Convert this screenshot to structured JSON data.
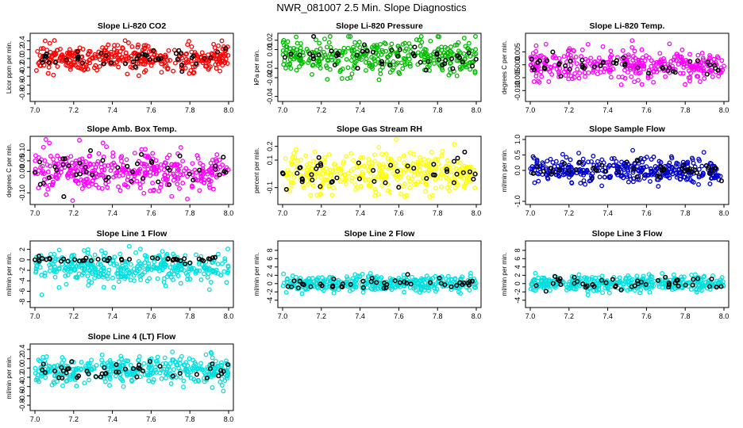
{
  "figure_title": "NWR_081007  2.5 Min. Slope Diagnostics",
  "chart_data": [
    {
      "type": "scatter",
      "title": "Slope Li-820 CO2",
      "ylabel": "Licor ppm per min.",
      "xlim": [
        7.0,
        8.0
      ],
      "ylim": [
        -0.9,
        0.5
      ],
      "xticks": [
        "7.0",
        "7.2",
        "7.4",
        "7.6",
        "7.8",
        "8.0"
      ],
      "yticks": [
        "-0.8",
        "-0.6",
        "-0.4",
        "-0.2",
        "0.0",
        "0.2",
        "0.4"
      ],
      "series": [
        {
          "color": "#ff0000",
          "center": 0.0,
          "spread": 0.15,
          "count": 360
        },
        {
          "color": "#000000",
          "center": 0.0,
          "spread": 0.1,
          "count": 45
        }
      ]
    },
    {
      "type": "scatter",
      "title": "Slope Li-820 Pressure",
      "ylabel": "kPa per min.",
      "xlim": [
        7.0,
        8.0
      ],
      "ylim": [
        -0.042,
        0.024
      ],
      "xticks": [
        "7.0",
        "7.2",
        "7.4",
        "7.6",
        "7.8",
        "8.0"
      ],
      "yticks": [
        "-0.04",
        "-0.02",
        "-0.01",
        "0.01",
        "0.02"
      ],
      "series": [
        {
          "color": "#00bb00",
          "center": 0.002,
          "spread": 0.009,
          "count": 360
        },
        {
          "color": "#000000",
          "center": 0.002,
          "spread": 0.007,
          "count": 45
        }
      ]
    },
    {
      "type": "scatter",
      "title": "Slope Li-820 Temp.",
      "ylabel": "degrees C per min.",
      "xlim": [
        7.0,
        8.0
      ],
      "ylim": [
        -0.013,
        0.011
      ],
      "xticks": [
        "7.0",
        "7.2",
        "7.4",
        "7.6",
        "7.8",
        "8.0"
      ],
      "yticks": [
        "-0.010",
        "-0.005",
        "0.000",
        "0.005"
      ],
      "series": [
        {
          "color": "#ff00ff",
          "center": 0.0,
          "spread": 0.003,
          "count": 340
        },
        {
          "color": "#000000",
          "center": 0.0,
          "spread": 0.002,
          "count": 45
        }
      ]
    },
    {
      "type": "scatter",
      "title": "Slope Amb. Box Temp.",
      "ylabel": "degrees C per min.",
      "xlim": [
        7.0,
        8.0
      ],
      "ylim": [
        -0.14,
        0.15
      ],
      "xticks": [
        "7.0",
        "7.2",
        "7.4",
        "7.6",
        "7.8",
        "8.0"
      ],
      "yticks": [
        "-0.10",
        "0.00",
        "0.05",
        "0.10"
      ],
      "series": [
        {
          "color": "#ff00ff",
          "center": 0.0,
          "spread": 0.05,
          "count": 360
        },
        {
          "color": "#000000",
          "center": 0.0,
          "spread": 0.04,
          "count": 45
        }
      ]
    },
    {
      "type": "scatter",
      "title": "Slope Gas Stream RH",
      "ylabel": "percent per min.",
      "xlim": [
        7.0,
        8.0
      ],
      "ylim": [
        -0.2,
        0.25
      ],
      "xticks": [
        "7.0",
        "7.2",
        "7.4",
        "7.6",
        "7.8",
        "8.0"
      ],
      "yticks": [
        "-0.1",
        "0.1",
        "0.2"
      ],
      "series": [
        {
          "color": "#ffff00",
          "center": 0.0,
          "spread": 0.07,
          "count": 360
        },
        {
          "color": "#000000",
          "center": 0.0,
          "spread": 0.06,
          "count": 45
        }
      ]
    },
    {
      "type": "scatter",
      "title": "Slope Sample Flow",
      "ylabel": "ml/min per min.",
      "xlim": [
        7.0,
        8.0
      ],
      "ylim": [
        -1.0,
        1.0
      ],
      "xticks": [
        "7.0",
        "7.2",
        "7.4",
        "7.6",
        "7.8",
        "8.0"
      ],
      "yticks": [
        "-1.0",
        "0.0",
        "0.5",
        "1.0"
      ],
      "series": [
        {
          "color": "#0000cc",
          "center": 0.0,
          "spread": 0.2,
          "count": 360
        },
        {
          "color": "#000000",
          "center": 0.0,
          "spread": 0.15,
          "count": 45
        }
      ]
    },
    {
      "type": "scatter",
      "title": "Slope Line 1 Flow",
      "ylabel": "ml/min per min.",
      "xlim": [
        7.0,
        8.0
      ],
      "ylim": [
        -8.5,
        3.0
      ],
      "xticks": [
        "7.0",
        "7.2",
        "7.4",
        "7.6",
        "7.8",
        "8.0"
      ],
      "yticks": [
        "-8",
        "-6",
        "-4",
        "-2",
        "0",
        "2"
      ],
      "series": [
        {
          "color": "#00e0e0",
          "center": -1.5,
          "spread": 1.5,
          "count": 360
        },
        {
          "color": "#000000",
          "center": 0.0,
          "spread": 0.3,
          "count": 45
        }
      ]
    },
    {
      "type": "scatter",
      "title": "Slope Line 2 Flow",
      "ylabel": "ml/min per min.",
      "xlim": [
        7.0,
        8.0
      ],
      "ylim": [
        -5.0,
        9.5
      ],
      "xticks": [
        "7.0",
        "7.2",
        "7.4",
        "7.6",
        "7.8",
        "8.0"
      ],
      "yticks": [
        "-4",
        "-2",
        "0",
        "2",
        "4",
        "6",
        "8"
      ],
      "series": [
        {
          "color": "#00e0e0",
          "center": 0.0,
          "spread": 0.9,
          "count": 360
        },
        {
          "color": "#000000",
          "center": 0.0,
          "spread": 0.7,
          "count": 45
        }
      ]
    },
    {
      "type": "scatter",
      "title": "Slope Line 3 Flow",
      "ylabel": "ml/min per min.",
      "xlim": [
        7.0,
        8.0
      ],
      "ylim": [
        -5.0,
        9.5
      ],
      "xticks": [
        "7.0",
        "7.2",
        "7.4",
        "7.6",
        "7.8",
        "8.0"
      ],
      "yticks": [
        "-4",
        "-2",
        "0",
        "2",
        "4",
        "6",
        "8"
      ],
      "series": [
        {
          "color": "#00e0e0",
          "center": 0.0,
          "spread": 0.9,
          "count": 360
        },
        {
          "color": "#000000",
          "center": 0.0,
          "spread": 0.7,
          "count": 45
        }
      ]
    },
    {
      "type": "scatter",
      "title": "Slope Line 4 (LT) Flow",
      "ylabel": "ml/min per min.",
      "xlim": [
        7.0,
        8.0
      ],
      "ylim": [
        -0.85,
        0.45
      ],
      "xticks": [
        "7.0",
        "7.2",
        "7.4",
        "7.6",
        "7.8",
        "8.0"
      ],
      "yticks": [
        "-0.8",
        "-0.6",
        "-0.4",
        "-0.2",
        "0.0",
        "0.2",
        "0.4"
      ],
      "series": [
        {
          "color": "#00e0e0",
          "center": -0.05,
          "spread": 0.15,
          "count": 360
        },
        {
          "color": "#000000",
          "center": -0.05,
          "spread": 0.12,
          "count": 45
        }
      ]
    }
  ]
}
